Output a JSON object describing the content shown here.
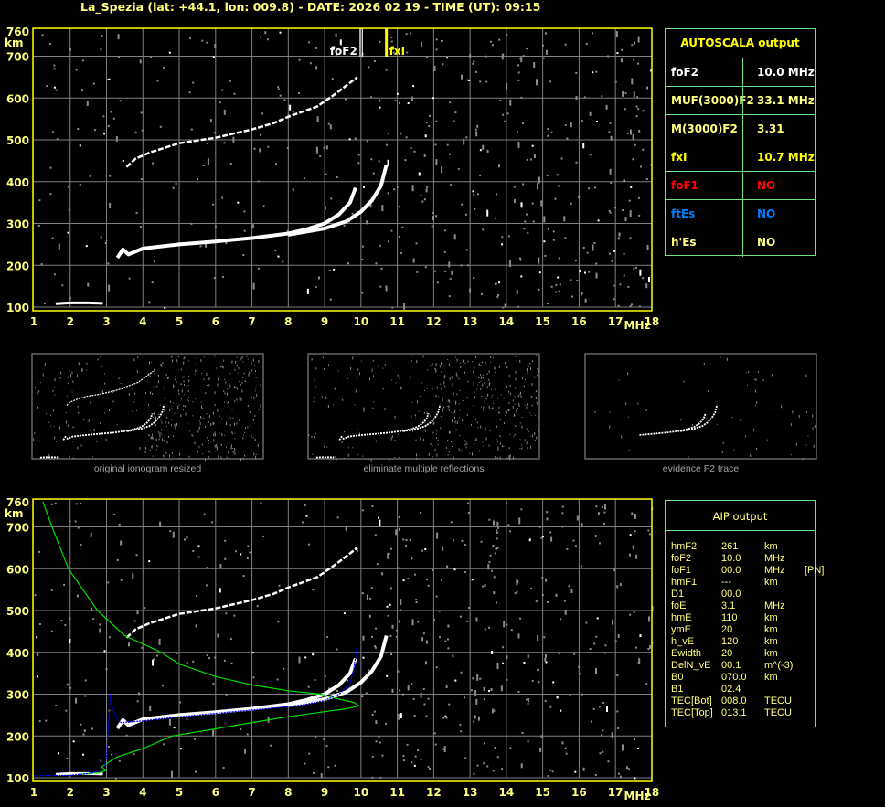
{
  "title": "La_Spezia (lat: +44.1, lon: 009.8) - DATE: 2026 02 19 - TIME (UT): 09:15",
  "colors": {
    "axis": "#ffff00",
    "grid": "#808080",
    "trace": "#ffffff",
    "noise": "#8c8c8c",
    "profile": "#00e000",
    "fit": "#0000ff",
    "table_border": "#70e080",
    "label": "#ffff80",
    "foF1": "#ff0000",
    "ftEs": "#0080ff"
  },
  "autoscala": {
    "header": "AUTOSCALA output",
    "rows": [
      {
        "key": "foF2",
        "value": "10.0 MHz",
        "color": "#ffffff"
      },
      {
        "key": "MUF(3000)F2",
        "value": "33.1 MHz",
        "color": "#ffff80"
      },
      {
        "key": "M(3000)F2",
        "value": "3.31",
        "color": "#ffff80"
      },
      {
        "key": "fxI",
        "value": "10.7 MHz",
        "color": "#ffff00"
      },
      {
        "key": "foF1",
        "value": "NO",
        "color": "#ff0000"
      },
      {
        "key": "ftEs",
        "value": "NO",
        "color": "#0080ff"
      },
      {
        "key": "h'Es",
        "value": "NO",
        "color": "#ffff80"
      }
    ]
  },
  "aip": {
    "header": "AIP output",
    "rows": [
      [
        "hmF2",
        "261",
        "km",
        ""
      ],
      [
        "foF2",
        "10.0",
        "MHz",
        ""
      ],
      [
        "foF1",
        "00.0",
        "MHz",
        "[PN]"
      ],
      [
        "hmF1",
        "---",
        "km",
        ""
      ],
      [
        "D1",
        "00.0",
        "",
        ""
      ],
      [
        "foE",
        "3.1",
        "MHz",
        ""
      ],
      [
        "hmE",
        "110",
        "km",
        ""
      ],
      [
        "ymE",
        "20",
        "km",
        ""
      ],
      [
        "h_vE",
        "120",
        "km",
        ""
      ],
      [
        "Ewidth",
        "20",
        "km",
        ""
      ],
      [
        "DelN_vE",
        "00.1",
        "m^(-3)",
        ""
      ],
      [
        "B0",
        "070.0",
        "km",
        ""
      ],
      [
        "B1",
        "02.4",
        "",
        ""
      ],
      [
        "TEC[Bot]",
        "008.0",
        "TECU",
        ""
      ],
      [
        "TEC[Top]",
        "013.1",
        "TECU",
        ""
      ]
    ]
  },
  "thumbnails": [
    {
      "caption": "original ionogram resized"
    },
    {
      "caption": "eliminate multiple reflections"
    },
    {
      "caption": "evidence F2 trace"
    }
  ],
  "chart_data": [
    {
      "type": "scatter",
      "title": "",
      "xlabel": "MHz",
      "ylabel": "km",
      "xlim": [
        1,
        18
      ],
      "ylim": [
        100,
        760
      ],
      "xticks": [
        "1",
        "2",
        "3",
        "4",
        "5",
        "6",
        "7",
        "8",
        "9",
        "10",
        "11",
        "12",
        "13",
        "14",
        "15",
        "16",
        "17",
        "18"
      ],
      "yticks": [
        "100",
        "200",
        "300",
        "400",
        "500",
        "600",
        "700",
        "760"
      ],
      "grid": true,
      "markers": [
        {
          "name": "foF2",
          "x": 10.0,
          "color": "#ffffff"
        },
        {
          "name": "fxI",
          "x": 10.7,
          "color": "#ffff00"
        }
      ],
      "series": [
        {
          "id": "e_trace",
          "points": [
            [
              1.6,
              108
            ],
            [
              2.0,
              110
            ],
            [
              2.5,
              110
            ],
            [
              2.9,
              109
            ]
          ]
        },
        {
          "id": "o_trace",
          "points": [
            [
              3.3,
              218
            ],
            [
              3.45,
              238
            ],
            [
              3.6,
              226
            ],
            [
              4,
              240
            ],
            [
              5,
              250
            ],
            [
              6,
              257
            ],
            [
              7,
              265
            ],
            [
              8,
              276
            ],
            [
              8.5,
              286
            ],
            [
              9,
              300
            ],
            [
              9.4,
              322
            ],
            [
              9.7,
              350
            ],
            [
              9.85,
              385
            ]
          ]
        },
        {
          "id": "x_trace",
          "points": [
            [
              8,
              273
            ],
            [
              9,
              288
            ],
            [
              9.6,
              305
            ],
            [
              10,
              328
            ],
            [
              10.3,
              355
            ],
            [
              10.55,
              390
            ],
            [
              10.7,
              440
            ]
          ]
        },
        {
          "id": "multiple_reflection",
          "points": [
            [
              3.55,
              435
            ],
            [
              3.8,
              455
            ],
            [
              4.2,
              470
            ],
            [
              5,
              492
            ],
            [
              6,
              505
            ],
            [
              7,
              525
            ],
            [
              7.6,
              540
            ],
            [
              8,
              555
            ],
            [
              8.8,
              580
            ],
            [
              9.3,
              610
            ],
            [
              9.9,
              650
            ]
          ]
        }
      ]
    },
    {
      "type": "line",
      "title": "",
      "xlabel": "MHz",
      "ylabel": "km",
      "xlim": [
        1,
        18
      ],
      "ylim": [
        100,
        760
      ],
      "xticks": [
        "1",
        "2",
        "3",
        "4",
        "5",
        "6",
        "7",
        "8",
        "9",
        "10",
        "11",
        "12",
        "13",
        "14",
        "15",
        "16",
        "17",
        "18"
      ],
      "yticks": [
        "100",
        "200",
        "300",
        "400",
        "500",
        "600",
        "700",
        "760"
      ],
      "grid": true,
      "series": [
        {
          "id": "e_trace",
          "points": [
            [
              1.6,
              108
            ],
            [
              2.0,
              110
            ],
            [
              2.5,
              110
            ],
            [
              2.9,
              109
            ]
          ]
        },
        {
          "id": "o_trace",
          "points": [
            [
              3.3,
              218
            ],
            [
              3.45,
              238
            ],
            [
              3.6,
              226
            ],
            [
              4,
              240
            ],
            [
              5,
              250
            ],
            [
              6,
              257
            ],
            [
              7,
              265
            ],
            [
              8,
              276
            ],
            [
              8.5,
              286
            ],
            [
              9,
              300
            ],
            [
              9.4,
              322
            ],
            [
              9.7,
              350
            ],
            [
              9.85,
              385
            ]
          ]
        },
        {
          "id": "x_trace",
          "points": [
            [
              8,
              273
            ],
            [
              9,
              288
            ],
            [
              9.6,
              305
            ],
            [
              10,
              328
            ],
            [
              10.3,
              355
            ],
            [
              10.55,
              390
            ],
            [
              10.7,
              440
            ]
          ]
        },
        {
          "id": "multiple_reflection",
          "points": [
            [
              3.55,
              435
            ],
            [
              3.8,
              455
            ],
            [
              4.2,
              470
            ],
            [
              5,
              492
            ],
            [
              6,
              505
            ],
            [
              7,
              525
            ],
            [
              7.6,
              540
            ],
            [
              8,
              555
            ],
            [
              8.8,
              580
            ],
            [
              9.3,
              610
            ],
            [
              9.9,
              650
            ]
          ]
        },
        {
          "id": "profile",
          "color": "#00e000",
          "points": [
            [
              2.2,
              108
            ],
            [
              2.8,
              112
            ],
            [
              3.0,
              118
            ],
            [
              2.85,
              126
            ],
            [
              3.3,
              150
            ],
            [
              4.0,
              170
            ],
            [
              4.8,
              200
            ],
            [
              6,
              217
            ],
            [
              7,
              232
            ],
            [
              8,
              246
            ],
            [
              9,
              258
            ],
            [
              9.6,
              265
            ],
            [
              9.95,
              272
            ],
            [
              9.8,
              280
            ],
            [
              9.3,
              290
            ],
            [
              8.9,
              300
            ],
            [
              8,
              308
            ],
            [
              7,
              322
            ],
            [
              6,
              342
            ],
            [
              5,
              372
            ],
            [
              4.5,
              400
            ],
            [
              4,
              420
            ],
            [
              3.5,
              440
            ],
            [
              2.75,
              500
            ],
            [
              1.95,
              600
            ],
            [
              1.5,
              700
            ],
            [
              1.25,
              760
            ]
          ]
        },
        {
          "id": "fitted_trace",
          "color": "#0000ff",
          "points": [
            [
              1,
              105
            ],
            [
              2,
              106
            ],
            [
              2.5,
              110
            ],
            [
              2.8,
              116
            ],
            [
              2.95,
              130
            ],
            [
              3.0,
              150
            ],
            [
              3.1,
              300
            ],
            [
              3.15,
              270
            ],
            [
              3.25,
              245
            ],
            [
              3.4,
              232
            ],
            [
              4,
              236
            ],
            [
              5,
              246
            ],
            [
              6,
              254
            ],
            [
              7,
              262
            ],
            [
              8,
              270
            ],
            [
              8.5,
              276
            ],
            [
              9,
              285
            ],
            [
              9.4,
              300
            ],
            [
              9.7,
              325
            ],
            [
              9.8,
              360
            ],
            [
              9.9,
              420
            ]
          ]
        }
      ]
    }
  ]
}
